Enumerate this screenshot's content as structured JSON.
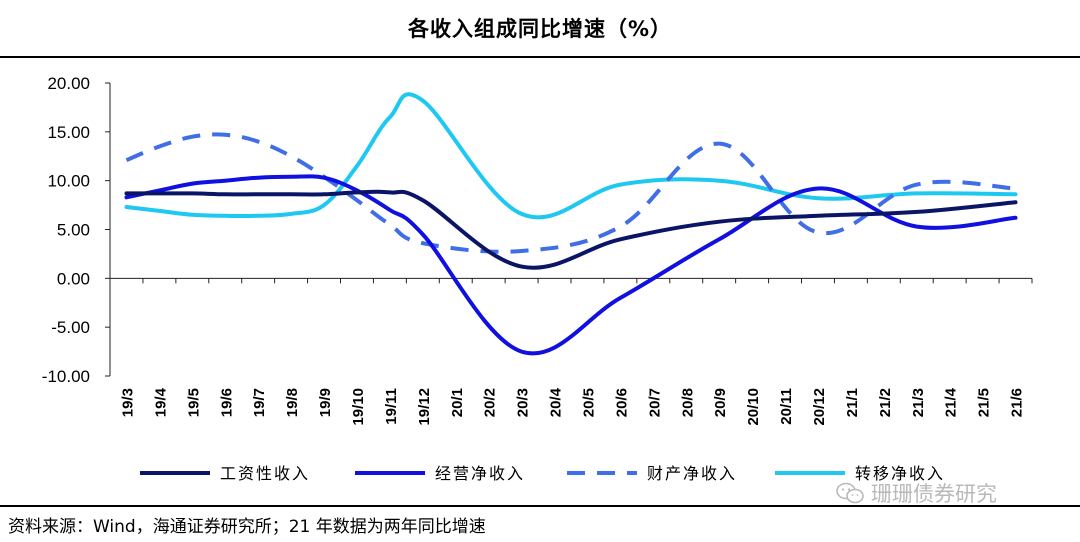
{
  "chart_data": {
    "type": "line",
    "title": "各收入组成同比增速（%）",
    "xlabel": "",
    "ylabel": "",
    "ylim": [
      -10,
      20
    ],
    "yticks": [
      "20.00",
      "15.00",
      "10.00",
      "5.00",
      "0.00",
      "-5.00",
      "-10.00"
    ],
    "ytick_values": [
      20,
      15,
      10,
      5,
      0,
      -5,
      -10
    ],
    "categories": [
      "19/3",
      "19/4",
      "19/5",
      "19/6",
      "19/7",
      "19/8",
      "19/9",
      "19/10",
      "19/11",
      "19/12",
      "20/1",
      "20/2",
      "20/3",
      "20/4",
      "20/5",
      "20/6",
      "20/7",
      "20/8",
      "20/9",
      "20/10",
      "20/11",
      "20/12",
      "21/1",
      "21/2",
      "21/3",
      "21/4",
      "21/5",
      "21/6"
    ],
    "legend_position": "bottom",
    "series": [
      {
        "name": "工资性收入",
        "color": "#0b1566",
        "dash": "solid",
        "values": [
          8.7,
          8.7,
          8.7,
          8.6,
          8.6,
          8.6,
          8.6,
          8.8,
          8.8,
          8.0,
          null,
          null,
          1.2,
          null,
          null,
          4.0,
          null,
          null,
          5.8,
          null,
          null,
          6.4,
          null,
          null,
          6.8,
          null,
          null,
          7.8
        ]
      },
      {
        "name": "经营净收入",
        "color": "#1010e0",
        "dash": "solid",
        "values": [
          8.3,
          9.0,
          9.7,
          10.0,
          10.3,
          10.4,
          10.3,
          9.0,
          7.0,
          4.5,
          null,
          null,
          -7.5,
          null,
          null,
          -2.0,
          null,
          null,
          4.0,
          null,
          null,
          9.2,
          null,
          null,
          5.3,
          null,
          null,
          6.2
        ]
      },
      {
        "name": "财产净收入",
        "color": "#3f6ee6",
        "dash": "dashed",
        "values": [
          12.1,
          13.5,
          14.5,
          14.7,
          14.0,
          12.5,
          10.4,
          8.0,
          5.5,
          3.6,
          null,
          null,
          2.8,
          null,
          null,
          5.3,
          null,
          null,
          13.8,
          null,
          null,
          4.7,
          null,
          null,
          9.6,
          null,
          null,
          9.2
        ]
      },
      {
        "name": "转移净收入",
        "color": "#1ec8f0",
        "dash": "solid",
        "values": [
          7.3,
          6.9,
          6.5,
          6.4,
          6.4,
          6.6,
          7.5,
          11.5,
          16.5,
          18.2,
          null,
          null,
          6.6,
          null,
          null,
          9.6,
          null,
          null,
          10.0,
          null,
          null,
          8.2,
          null,
          null,
          8.7,
          null,
          null,
          8.6
        ]
      }
    ]
  },
  "footer": {
    "source": "资料来源：Wind，海通证券研究所；21 年数据为两年同比增速",
    "watermark": "珊珊债券研究"
  }
}
